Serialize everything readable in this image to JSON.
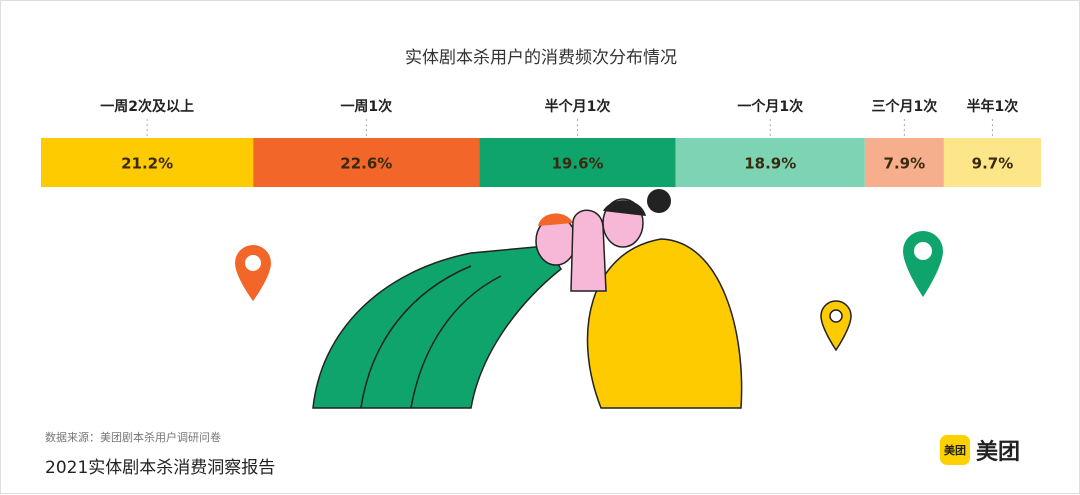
{
  "chart_data": {
    "type": "bar",
    "subtype": "stacked-100-horizontal",
    "title": "实体剧本杀用户的消费频次分布情况",
    "categories": [
      "一周2次及以上",
      "一周1次",
      "半个月1次",
      "一个月1次",
      "三个月1次",
      "半年1次"
    ],
    "values": [
      21.2,
      22.6,
      19.6,
      18.9,
      7.9,
      9.7
    ],
    "labels": [
      "21.2%",
      "22.6%",
      "19.6%",
      "18.9%",
      "7.9%",
      "9.7%"
    ],
    "colors": [
      "#fdcb00",
      "#f2662a",
      "#0ea46c",
      "#7dd4b5",
      "#f6ae8d",
      "#fde58a"
    ],
    "grid": false,
    "legend": "none"
  },
  "footer": {
    "source": "数据来源：美团剧本杀用户调研问卷",
    "report_title": "2021实体剧本杀消费洞察报告",
    "logo_badge": "美团",
    "logo_text": "美团"
  }
}
